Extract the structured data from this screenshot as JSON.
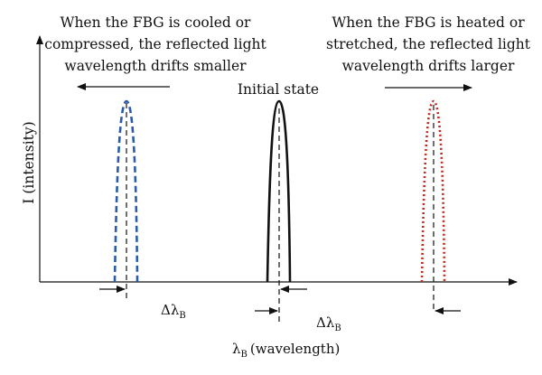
{
  "diagram": {
    "left_note": [
      "When the FBG is cooled or",
      "compressed, the reflected light",
      "wavelength drifts smaller"
    ],
    "right_note": [
      "When the FBG is heated or",
      "stretched, the reflected light",
      "wavelength drifts larger"
    ],
    "center_label": "Initial state",
    "y_axis_label": "I (intensity)",
    "x_axis_symbol": "λ",
    "x_axis_subscript": "B",
    "x_axis_label_text": "(wavelength)",
    "delta_symbol": "Δλ",
    "delta_subscript": "B",
    "peaks": [
      {
        "name": "blue-peak",
        "color": "#2a5caa",
        "style": "dashed"
      },
      {
        "name": "initial-peak",
        "color": "#111111",
        "style": "solid"
      },
      {
        "name": "red-peak",
        "color": "#c0281c",
        "style": "dotted"
      }
    ]
  }
}
